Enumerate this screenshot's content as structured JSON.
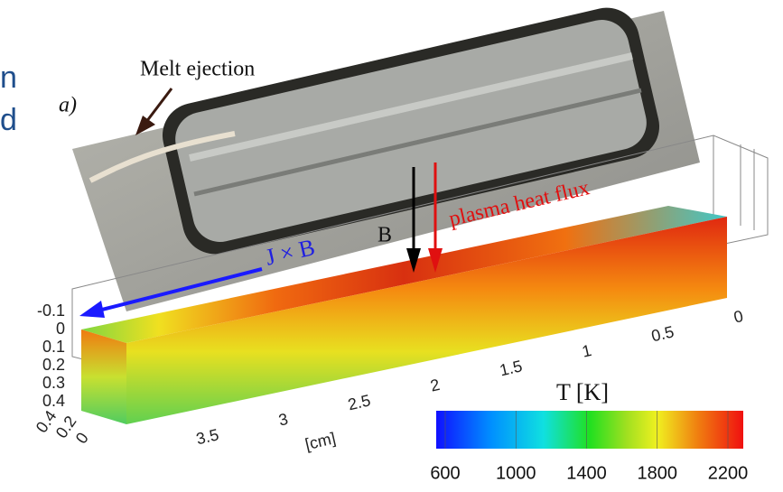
{
  "slide_fragment": {
    "lines": [
      "n",
      "d"
    ]
  },
  "photo": {
    "label": "Melt ejection",
    "panel": "a)"
  },
  "simulation": {
    "force_label": "J × B",
    "field_label": "B",
    "heat_label": "plasma heat flux",
    "depth_ticks": [
      "-0.1",
      "0",
      "0.1",
      "0.2",
      "0.3",
      "0.4"
    ],
    "width_ticks": [
      "0.4",
      "0.2",
      "0"
    ],
    "length_ticks": [
      "3.5",
      "3",
      "2.5",
      "2",
      "1.5",
      "1",
      "0.5",
      "0"
    ],
    "length_unit": "[cm]"
  },
  "colorbar": {
    "title": "T [K]",
    "ticks": [
      600,
      1000,
      1400,
      1800,
      2200
    ]
  }
}
